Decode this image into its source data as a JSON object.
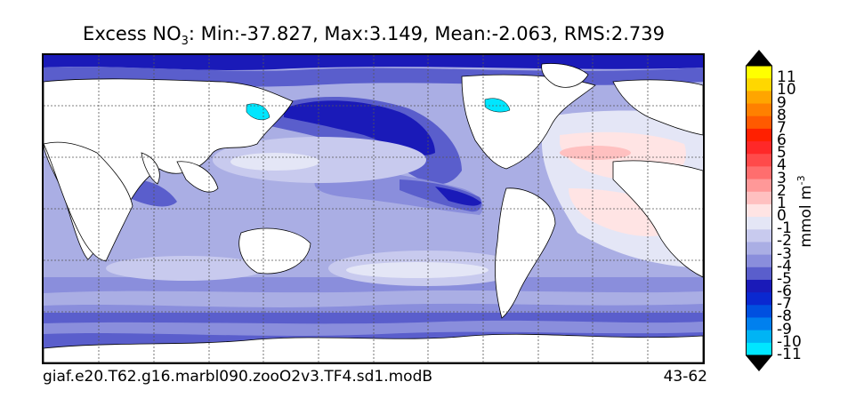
{
  "title": {
    "prefix": "Excess NO",
    "subscript": "3",
    "suffix": ": Min:-37.827, Max:3.149, Mean:-2.063, RMS:2.739"
  },
  "footer": {
    "case_name": "giaf.e20.T62.g16.marbl090.zooO2v3.TF4.sd1.modB",
    "years": "43-62"
  },
  "colorbar": {
    "units_prefix": "mmol m",
    "units_exponent": "-3",
    "ticks": [
      "11",
      "10",
      "9",
      "8",
      "7",
      "6",
      "5",
      "4",
      "3",
      "2",
      "1",
      "0",
      "-1",
      "-2",
      "-3",
      "-4",
      "-5",
      "-6",
      "-7",
      "-8",
      "-9",
      "-10",
      "-11"
    ],
    "colors_top_to_bottom": [
      "#ffff00",
      "#ffd700",
      "#ffa500",
      "#ff8000",
      "#ff5a00",
      "#ff2000",
      "#ff2828",
      "#ff4a4a",
      "#ff6e6e",
      "#ff9898",
      "#ffc0c0",
      "#ffe4e4",
      "#e4e6f6",
      "#c8caee",
      "#aaaee4",
      "#8a8edc",
      "#5a5ecc",
      "#1a1ab8",
      "#0a28d0",
      "#0050e0",
      "#0080ee",
      "#00b4f4",
      "#00e6ff"
    ],
    "extend_top_color": "#000000",
    "extend_bottom_color": "#000000"
  },
  "map": {
    "projection": "plate-carree",
    "gridlines": "dashed",
    "land_color": "#ffffff",
    "ocean_base_color": "#aaaee4"
  }
}
